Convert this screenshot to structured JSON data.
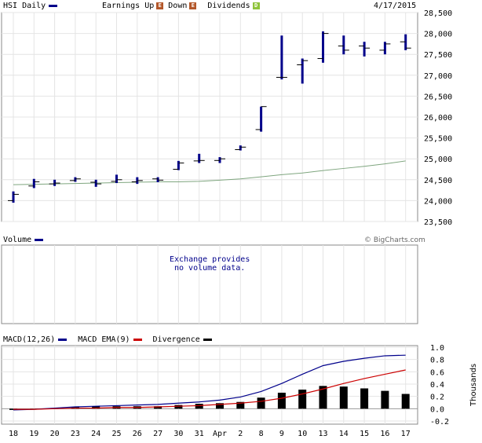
{
  "header": {
    "symbol_label": "HSI Daily",
    "earnings_label": "Earnings",
    "up_label": "Up",
    "down_label": "Down",
    "dividends_label": "Dividends",
    "earnings_up_icon_letter": "E",
    "earnings_down_icon_letter": "E",
    "dividends_icon_letter": "D",
    "date": "4/17/2015",
    "series_color": "#00008b",
    "ma_color": "#7fa67f"
  },
  "volume": {
    "label": "Volume",
    "copyright": "© BigCharts.com",
    "message_line1": "Exchange provides",
    "message_line2": "no volume data."
  },
  "macd": {
    "label": "MACD(12,26)",
    "ema_label": "MACD EMA(9)",
    "divergence_label": "Divergence",
    "macd_color": "#00008b",
    "ema_color": "#cc0000",
    "divergence_color": "#000000",
    "units_label": "Thousands"
  },
  "chart_data": [
    {
      "type": "ohlc",
      "title": "HSI Daily",
      "x": [
        "18",
        "19",
        "20",
        "23",
        "24",
        "25",
        "26",
        "27",
        "30",
        "31",
        "Apr",
        "2",
        "8",
        "9",
        "10",
        "13",
        "14",
        "15",
        "16",
        "17"
      ],
      "ohlc": [
        [
          24000,
          24220,
          23950,
          24150
        ],
        [
          24350,
          24520,
          24300,
          24450
        ],
        [
          24400,
          24500,
          24350,
          24420
        ],
        [
          24480,
          24560,
          24450,
          24520
        ],
        [
          24440,
          24500,
          24330,
          24400
        ],
        [
          24460,
          24620,
          24420,
          24500
        ],
        [
          24450,
          24560,
          24400,
          24480
        ],
        [
          24520,
          24560,
          24440,
          24490
        ],
        [
          24750,
          24950,
          24730,
          24900
        ],
        [
          24950,
          25120,
          24900,
          24960
        ],
        [
          24960,
          25040,
          24900,
          25000
        ],
        [
          25220,
          25320,
          25200,
          25280
        ],
        [
          25700,
          26250,
          25650,
          26250
        ],
        [
          26950,
          27950,
          26900,
          26950
        ],
        [
          27250,
          27400,
          26800,
          27350
        ],
        [
          27400,
          28050,
          27300,
          28000
        ],
        [
          27700,
          27950,
          27500,
          27600
        ],
        [
          27700,
          27800,
          27450,
          27650
        ],
        [
          27600,
          27800,
          27500,
          27750
        ],
        [
          27800,
          27980,
          27600,
          27650
        ]
      ],
      "moving_average": [
        24380,
        24390,
        24400,
        24410,
        24420,
        24430,
        24440,
        24450,
        24450,
        24460,
        24490,
        24520,
        24570,
        24620,
        24660,
        24720,
        24770,
        24820,
        24880,
        24950
      ],
      "ylim": [
        23500,
        28500
      ],
      "yticks": [
        23500,
        24000,
        24500,
        25000,
        25500,
        26000,
        26500,
        27000,
        27500,
        28000,
        28500
      ],
      "ytick_labels": [
        "23,500",
        "24,000",
        "24,500",
        "25,000",
        "25,500",
        "26,000",
        "26,500",
        "27,000",
        "27,500",
        "28,000",
        "28,500"
      ],
      "grid": true
    },
    {
      "type": "line",
      "title": "MACD(12,26)",
      "x": [
        "18",
        "19",
        "20",
        "23",
        "24",
        "25",
        "26",
        "27",
        "30",
        "31",
        "Apr",
        "2",
        "8",
        "9",
        "10",
        "13",
        "14",
        "15",
        "16",
        "17"
      ],
      "series": [
        {
          "name": "MACD(12,26)",
          "values": [
            -0.02,
            -0.01,
            0.01,
            0.03,
            0.04,
            0.05,
            0.06,
            0.07,
            0.09,
            0.11,
            0.14,
            0.19,
            0.28,
            0.41,
            0.56,
            0.7,
            0.77,
            0.82,
            0.86,
            0.87
          ]
        },
        {
          "name": "MACD EMA(9)",
          "values": [
            -0.01,
            -0.01,
            0.0,
            0.01,
            0.01,
            0.02,
            0.02,
            0.03,
            0.04,
            0.05,
            0.07,
            0.09,
            0.12,
            0.17,
            0.24,
            0.32,
            0.41,
            0.49,
            0.56,
            0.63
          ]
        },
        {
          "name": "Divergence",
          "type": "bar",
          "values": [
            -0.02,
            -0.01,
            0.01,
            0.03,
            0.04,
            0.04,
            0.04,
            0.04,
            0.06,
            0.08,
            0.09,
            0.11,
            0.18,
            0.26,
            0.31,
            0.37,
            0.36,
            0.33,
            0.29,
            0.24
          ]
        }
      ],
      "ylim": [
        -0.2,
        1.0
      ],
      "yticks": [
        -0.2,
        0.0,
        0.2,
        0.4,
        0.6,
        0.8,
        1.0
      ],
      "ytick_labels": [
        "-0.2",
        "0.0",
        "0.2",
        "0.4",
        "0.6",
        "0.8",
        "1.0"
      ],
      "ylabel": "Thousands",
      "grid": true
    }
  ]
}
